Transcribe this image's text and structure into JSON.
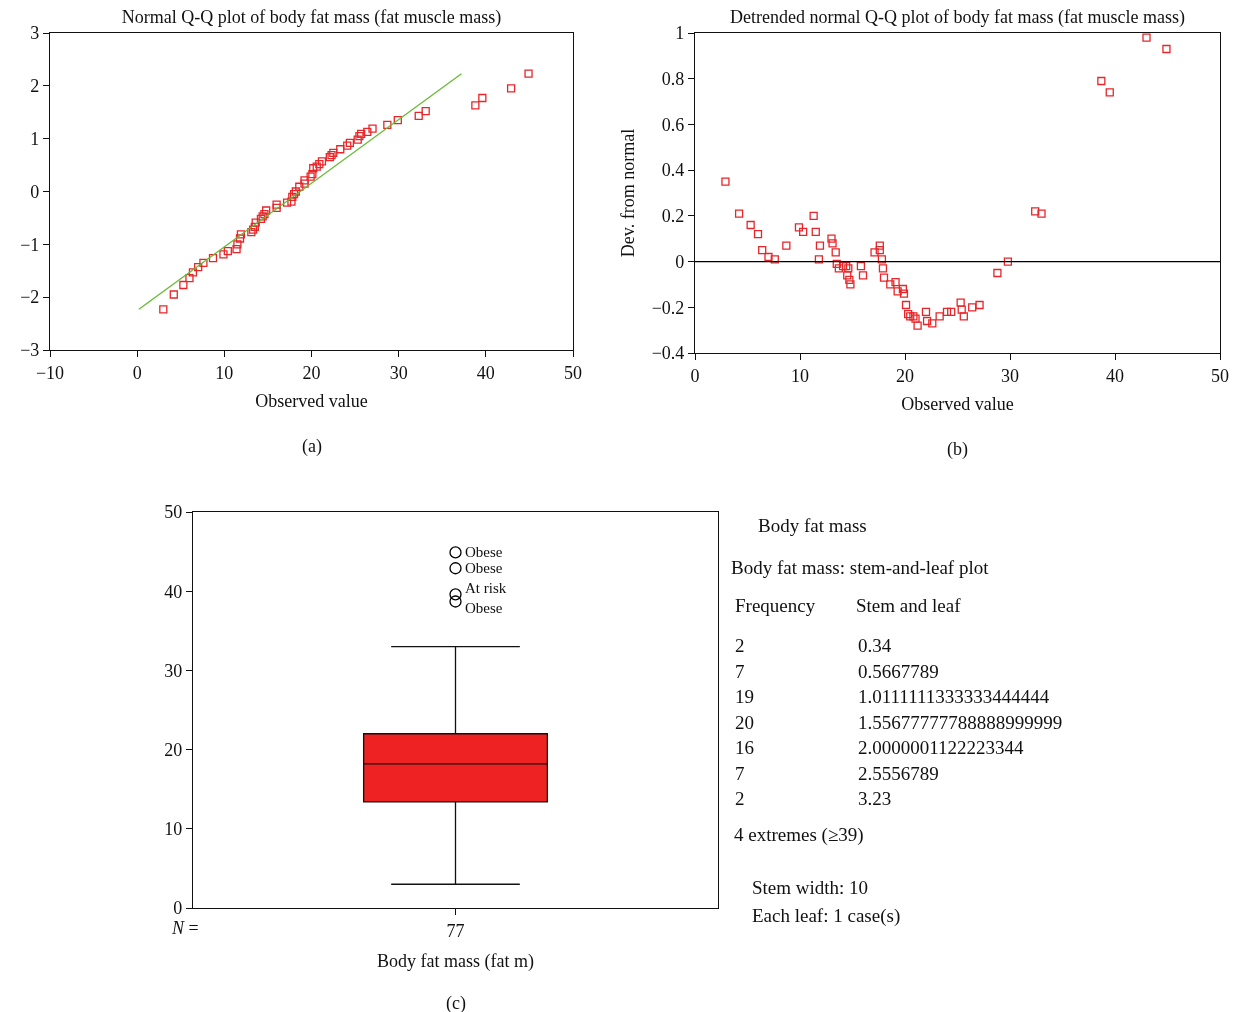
{
  "chart_data": [
    {
      "type": "scatter",
      "title": "Normal Q-Q plot of body fat mass (fat muscle mass)",
      "xlabel": "Observed value",
      "annotations": [
        "(a)"
      ],
      "xlim": [
        -10,
        50
      ],
      "xticks": [
        {
          "value": -10,
          "label": "−10"
        },
        0,
        10,
        20,
        30,
        40,
        50
      ],
      "ylim": [
        -3,
        3
      ],
      "yticks": [
        {
          "value": -3,
          "label": "−3"
        },
        {
          "value": -2,
          "label": "−2"
        },
        {
          "value": -1,
          "label": "−1"
        },
        0,
        1,
        2,
        3
      ],
      "series": [
        {
          "type": "scatter",
          "color": "#e8262a",
          "marker": "square",
          "x": [
            3.0,
            4.2,
            5.3,
            6.0,
            6.4,
            7.0,
            7.6,
            8.7,
            9.9,
            10.4,
            11.4,
            11.5,
            11.8,
            11.9,
            13.1,
            13.3,
            13.5,
            13.6,
            14.2,
            14.4,
            14.6,
            14.8,
            16.0,
            16.0,
            17.2,
            17.7,
            17.8,
            18.0,
            18.2,
            18.6,
            19.2,
            19.2,
            19.9,
            20.1,
            20.2,
            20.6,
            20.9,
            21.2,
            22.1,
            22.3,
            22.5,
            23.3,
            24.1,
            24.4,
            25.3,
            25.5,
            25.7,
            26.4,
            27.0,
            28.7,
            29.9,
            32.3,
            33.1,
            38.8,
            39.6,
            42.9,
            44.9
          ],
          "values": [
            -2.23,
            -1.95,
            -1.77,
            -1.64,
            -1.53,
            -1.43,
            -1.35,
            -1.26,
            -1.19,
            -1.13,
            -1.09,
            -1.0,
            -0.89,
            -0.81,
            -0.77,
            -0.72,
            -0.67,
            -0.59,
            -0.52,
            -0.47,
            -0.43,
            -0.36,
            -0.31,
            -0.25,
            -0.21,
            -0.19,
            -0.1,
            -0.05,
            0.0,
            0.09,
            0.15,
            0.21,
            0.28,
            0.33,
            0.44,
            0.47,
            0.52,
            0.57,
            0.65,
            0.69,
            0.73,
            0.8,
            0.87,
            0.92,
            0.98,
            1.05,
            1.09,
            1.13,
            1.19,
            1.26,
            1.35,
            1.43,
            1.52,
            1.63,
            1.77,
            1.95,
            2.23
          ]
        },
        {
          "type": "line",
          "color": "#66bb33",
          "x": [
            0.2,
            37.2
          ],
          "values": [
            -2.23,
            2.23
          ]
        }
      ]
    },
    {
      "type": "scatter",
      "title": "Detrended normal Q-Q plot of body fat mass (fat muscle mass)",
      "xlabel": "Observed value",
      "ylabel": "Dev. from normal",
      "marker": "square",
      "annotations": [
        "(b)"
      ],
      "xlim": [
        0,
        50
      ],
      "xticks": [
        0,
        10,
        20,
        30,
        40,
        50
      ],
      "ylim": [
        -0.4,
        1
      ],
      "yticks": [
        {
          "value": -0.4,
          "label": "−0.4"
        },
        {
          "value": -0.2,
          "label": "−0.2"
        },
        0,
        0.2,
        0.4,
        0.6,
        0.8,
        1
      ],
      "ref_lines": [
        {
          "axis": "y",
          "value": 0,
          "color": "#000000"
        }
      ],
      "series": [
        {
          "type": "scatter",
          "color": "#e8262a",
          "x": [
            2.9,
            4.2,
            5.3,
            6.0,
            6.4,
            7.0,
            7.6,
            8.7,
            9.9,
            10.3,
            11.3,
            11.5,
            11.9,
            11.8,
            13.0,
            13.1,
            13.4,
            13.5,
            13.7,
            14.1,
            14.4,
            14.6,
            14.5,
            14.7,
            14.8,
            15.8,
            16.0,
            17.1,
            17.6,
            17.6,
            17.8,
            17.9,
            18.0,
            18.6,
            19.1,
            19.3,
            19.8,
            19.9,
            20.1,
            20.3,
            20.5,
            20.8,
            21.0,
            21.2,
            22.0,
            22.1,
            22.6,
            23.3,
            24.0,
            24.4,
            25.3,
            25.4,
            25.6,
            26.4,
            27.1,
            28.8,
            29.8,
            32.4,
            33.0,
            38.7,
            39.5,
            43.0,
            44.9
          ],
          "values": [
            0.35,
            0.21,
            0.16,
            0.12,
            0.05,
            0.02,
            0.01,
            0.07,
            0.15,
            0.13,
            0.2,
            0.13,
            0.07,
            0.01,
            0.1,
            0.08,
            0.04,
            -0.01,
            -0.03,
            -0.02,
            -0.02,
            -0.03,
            -0.06,
            -0.08,
            -0.1,
            -0.02,
            -0.06,
            0.04,
            0.07,
            0.05,
            0.01,
            -0.03,
            -0.07,
            -0.1,
            -0.09,
            -0.13,
            -0.12,
            -0.14,
            -0.19,
            -0.23,
            -0.24,
            -0.24,
            -0.25,
            -0.28,
            -0.22,
            -0.26,
            -0.27,
            -0.24,
            -0.22,
            -0.22,
            -0.18,
            -0.21,
            -0.24,
            -0.2,
            -0.19,
            -0.05,
            0.0,
            0.22,
            0.21,
            0.79,
            0.74,
            0.98,
            0.93
          ]
        }
      ]
    },
    {
      "type": "box",
      "xlabel": "Body fat mass (fat m)",
      "categories": [
        "77"
      ],
      "color": "#ee2222",
      "ylim": [
        0,
        50
      ],
      "yticks": [
        0,
        10,
        20,
        30,
        40,
        50
      ],
      "boxes": [
        {
          "low": 3.0,
          "q1": 13.4,
          "median": 18.2,
          "q3": 22.0,
          "high": 33.0
        }
      ],
      "series": [
        {
          "type": "scatter",
          "color": "#000000",
          "marker": "circle",
          "x": [
            "77",
            "77",
            "77",
            "77"
          ],
          "values": [
            44.9,
            42.9,
            39.6,
            38.7
          ]
        }
      ],
      "annotations": [
        "N =",
        {
          "text": "Obese",
          "x": "77",
          "y": 44.9
        },
        {
          "text": "Obese",
          "x": "77",
          "y": 42.9
        },
        {
          "text": "At risk",
          "x": "77",
          "y": 39.6
        },
        {
          "text": "Obese",
          "x": "77",
          "y": 38.7
        },
        "(c)"
      ]
    },
    {
      "type": "other",
      "title": "Body fat mass",
      "subtitle": "Body fat mass: stem-and-leaf plot",
      "xlabel": "Frequency",
      "ylabel": "Stem and leaf",
      "categories": [
        "0.34",
        "0.5667789",
        "1.0111111333333444444",
        "1.55677777788888999999",
        "2.0000001122223344",
        "2.5556789",
        "3.23"
      ],
      "values": [
        2,
        7,
        19,
        20,
        16,
        7,
        2
      ],
      "data_labels": true,
      "annotations": [
        "4 extremes (≥39)",
        "Stem width: 10",
        "Each leaf: 1 case(s)"
      ]
    }
  ]
}
